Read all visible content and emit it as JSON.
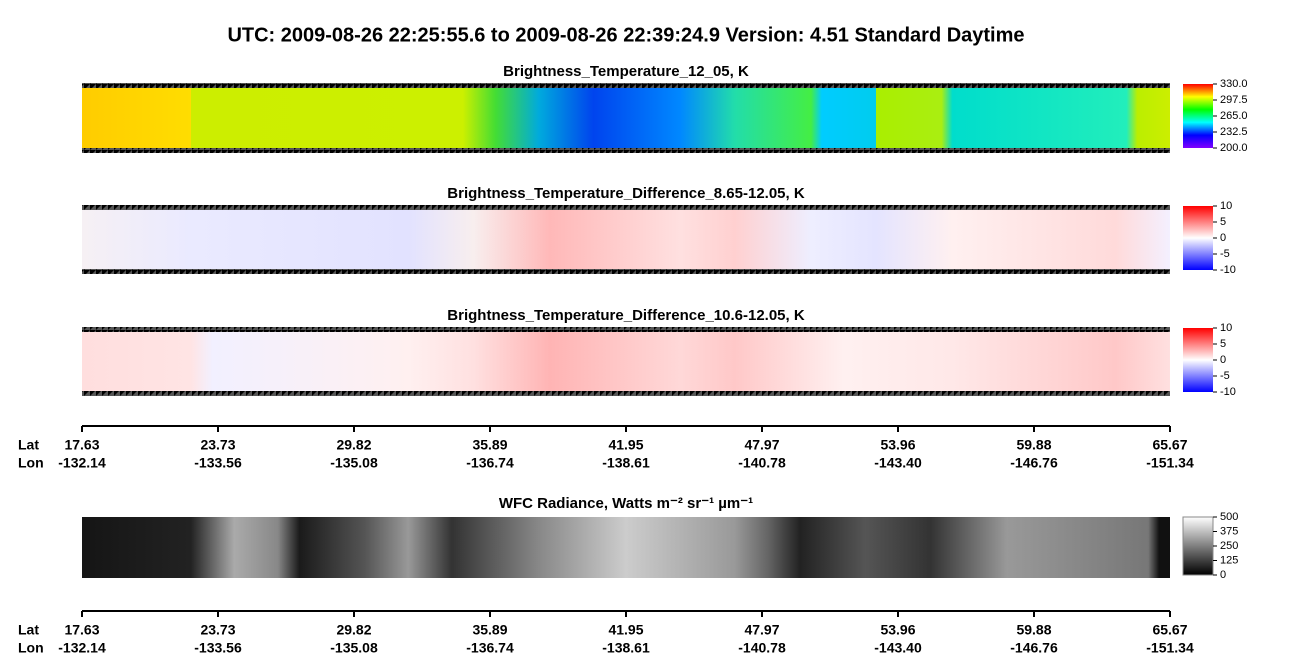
{
  "title": "UTC:  2009-08-26   22:25:55.6  to  2009-08-26   22:39:24.9    Version: 4.51  Standard Daytime",
  "panels": [
    {
      "title": "Brightness_Temperature_12_05, K",
      "colormap": [
        "#8000ff",
        "#0000ff",
        "#00ffff",
        "#00ff00",
        "#ffff00",
        "#ff0000"
      ],
      "colorbar_lim": [
        200,
        330
      ],
      "colorbar_ticks": [
        {
          "value": 330,
          "label": "330.0"
        },
        {
          "value": 297.5,
          "label": "297.5"
        },
        {
          "value": 265,
          "label": "265.0"
        },
        {
          "value": 232.5,
          "label": "232.5"
        },
        {
          "value": 200,
          "label": "200.0"
        }
      ]
    },
    {
      "title": "Brightness_Temperature_Difference_8.65-12.05, K",
      "colormap": [
        "#0000ff",
        "#ffffff",
        "#ff0000"
      ],
      "colorbar_lim": [
        -10,
        10
      ],
      "colorbar_ticks": [
        10,
        5,
        0,
        -5,
        -10
      ]
    },
    {
      "title": "Brightness_Temperature_Difference_10.6-12.05, K",
      "colormap": [
        "#0000ff",
        "#ffffff",
        "#ff0000"
      ],
      "colorbar_lim": [
        -10,
        10
      ],
      "colorbar_ticks": [
        10,
        5,
        0,
        -5,
        -10
      ]
    },
    {
      "title": "WFC Radiance, Watts m⁻² sr⁻¹ µm⁻¹",
      "colormap": [
        "#000000",
        "#ffffff"
      ],
      "colorbar_lim": [
        0,
        500
      ],
      "colorbar_ticks": [
        500,
        375,
        250,
        125,
        0
      ]
    }
  ],
  "axes": [
    {
      "row_labels": [
        "Lat",
        "Lon"
      ],
      "lat": [
        "17.63",
        "23.73",
        "29.82",
        "35.89",
        "41.95",
        "47.97",
        "53.96",
        "59.88",
        "65.67"
      ],
      "lon": [
        "-132.14",
        "-133.56",
        "-135.08",
        "-136.74",
        "-138.61",
        "-140.78",
        "-143.40",
        "-146.76",
        "-151.34"
      ]
    },
    {
      "row_labels": [
        "Lat",
        "Lon"
      ],
      "lat": [
        "17.63",
        "23.73",
        "29.82",
        "35.89",
        "41.95",
        "47.97",
        "53.96",
        "59.88",
        "65.67"
      ],
      "lon": [
        "-132.14",
        "-133.56",
        "-135.08",
        "-136.74",
        "-138.61",
        "-140.78",
        "-143.40",
        "-146.76",
        "-151.34"
      ]
    }
  ]
}
